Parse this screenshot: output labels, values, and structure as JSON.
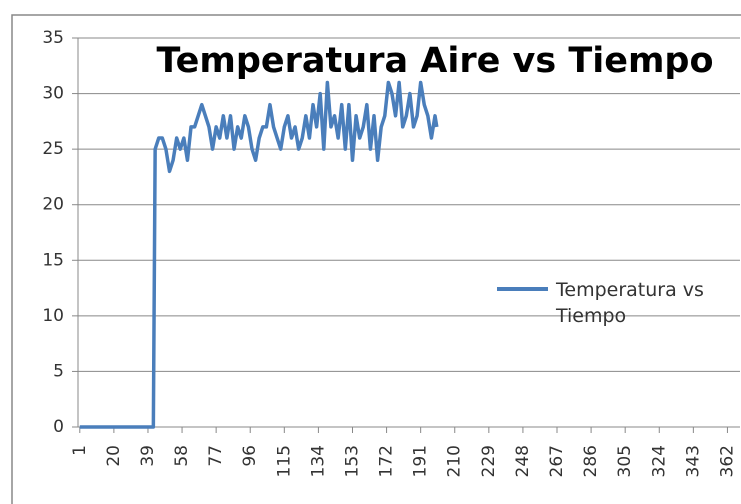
{
  "chart_data": {
    "type": "line",
    "title": "Temperatura Aire vs Tiempo",
    "series": [
      {
        "name": "Temperatura vs Tiempo",
        "color": "#4a7ebb",
        "x": [
          1,
          42,
          43,
          45,
          47,
          49,
          51,
          53,
          55,
          57,
          59,
          61,
          63,
          65,
          67,
          69,
          71,
          73,
          75,
          77,
          79,
          81,
          83,
          85,
          87,
          89,
          91,
          93,
          95,
          97,
          99,
          101,
          103,
          105,
          107,
          109,
          111,
          113,
          115,
          117,
          119,
          121,
          123,
          125,
          127,
          129,
          131,
          133,
          135,
          137,
          139,
          141,
          143,
          145,
          147,
          149,
          151,
          153,
          155,
          157,
          159,
          161,
          163,
          165,
          167,
          169,
          171,
          173,
          175,
          177,
          179,
          181,
          183,
          185,
          187,
          189,
          191,
          193,
          195,
          197,
          199,
          200
        ],
        "values": [
          0,
          0,
          25,
          26,
          26,
          25,
          23,
          24,
          26,
          25,
          26,
          24,
          27,
          27,
          28,
          29,
          28,
          27,
          25,
          27,
          26,
          28,
          26,
          28,
          25,
          27,
          26,
          28,
          27,
          25,
          24,
          26,
          27,
          27,
          29,
          27,
          26,
          25,
          27,
          28,
          26,
          27,
          25,
          26,
          28,
          26,
          29,
          27,
          30,
          25,
          31,
          27,
          28,
          26,
          29,
          25,
          29,
          24,
          28,
          26,
          27,
          29,
          25,
          28,
          24,
          27,
          28,
          31,
          30,
          28,
          31,
          27,
          28,
          30,
          27,
          28,
          31,
          29,
          28,
          26,
          28,
          27
        ]
      }
    ],
    "xlim": [
      0,
      369
    ],
    "xticks": [
      1,
      20,
      39,
      58,
      77,
      96,
      115,
      134,
      153,
      172,
      191,
      210,
      229,
      248,
      267,
      286,
      305,
      324,
      343,
      362
    ],
    "ylim": [
      0,
      35
    ],
    "yticks": [
      0,
      5,
      10,
      15,
      20,
      25,
      30,
      35
    ],
    "grid": true,
    "legend": "right"
  }
}
